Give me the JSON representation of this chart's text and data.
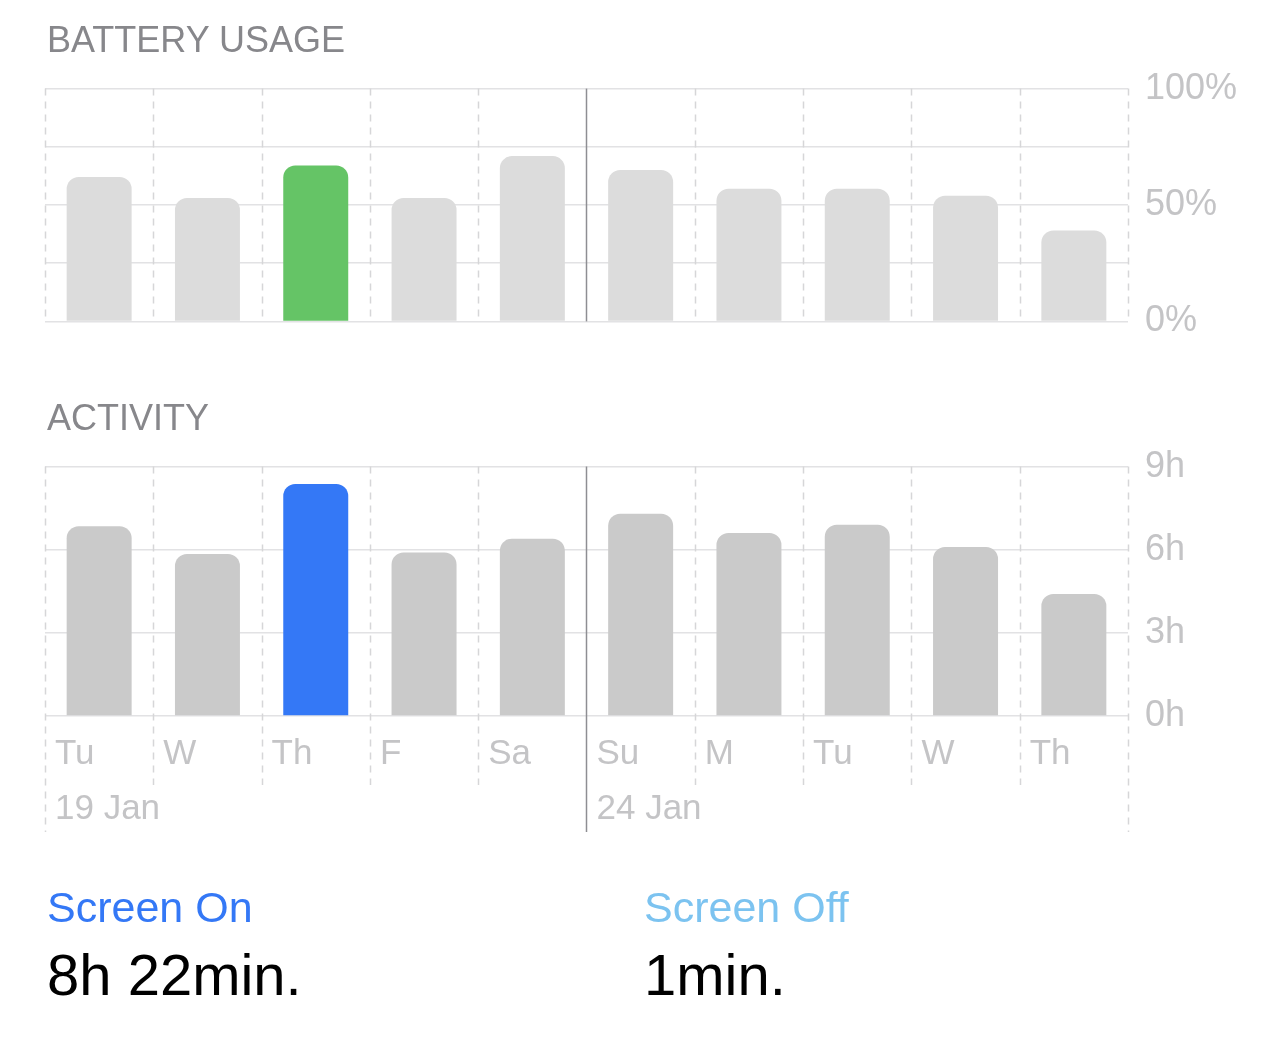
{
  "chart_data": [
    {
      "type": "bar",
      "title": "BATTERY USAGE",
      "categories": [
        "Tu",
        "W",
        "Th",
        "F",
        "Sa",
        "Su",
        "M",
        "Tu",
        "W",
        "Th"
      ],
      "values": [
        62,
        53,
        67,
        53,
        71,
        65,
        57,
        57,
        54,
        39
      ],
      "colors": [
        "#dcdcdc",
        "#dcdcdc",
        "#65c466",
        "#dcdcdc",
        "#dcdcdc",
        "#dcdcdc",
        "#dcdcdc",
        "#dcdcdc",
        "#dcdcdc",
        "#dcdcdc"
      ],
      "ylim": [
        0,
        100
      ],
      "yticks": [
        {
          "value": 0,
          "label": "0%"
        },
        {
          "value": 25,
          "label": null
        },
        {
          "value": 50,
          "label": "50%"
        },
        {
          "value": 75,
          "label": null
        },
        {
          "value": 100,
          "label": "100%"
        }
      ],
      "ref_lines": [
        {
          "axis": "x",
          "value": "Su",
          "color": "#8e8e93"
        }
      ],
      "grid": true,
      "tick_labels": "y"
    },
    {
      "type": "bar",
      "title": "ACTIVITY",
      "categories": [
        "Tu",
        "W",
        "Th",
        "F",
        "Sa",
        "Su",
        "M",
        "Tu",
        "W",
        "Th"
      ],
      "values": [
        6.85,
        5.85,
        8.37,
        5.9,
        6.4,
        7.3,
        6.6,
        6.9,
        6.1,
        4.4
      ],
      "colors": [
        "#cacaca",
        "#cacaca",
        "#3478f6",
        "#cacaca",
        "#cacaca",
        "#cacaca",
        "#cacaca",
        "#cacaca",
        "#cacaca",
        "#cacaca"
      ],
      "ylim": [
        0,
        9
      ],
      "yticks": [
        {
          "value": 0,
          "label": "0h"
        },
        {
          "value": 3,
          "label": "3h"
        },
        {
          "value": 6,
          "label": "6h"
        },
        {
          "value": 9,
          "label": "9h"
        }
      ],
      "ref_lines": [
        {
          "axis": "x",
          "value": "Su",
          "label": "24 Jan",
          "color": "#8e8e93"
        }
      ],
      "grid": true,
      "annotations": [
        "19 Jan"
      ]
    },
    {
      "type": "other",
      "categories": [
        "Screen On",
        "Screen Off"
      ],
      "colors": [
        "#3478f6",
        "#7cc3f0"
      ],
      "value_labels": [
        "8h 22min.",
        "1min."
      ]
    }
  ]
}
